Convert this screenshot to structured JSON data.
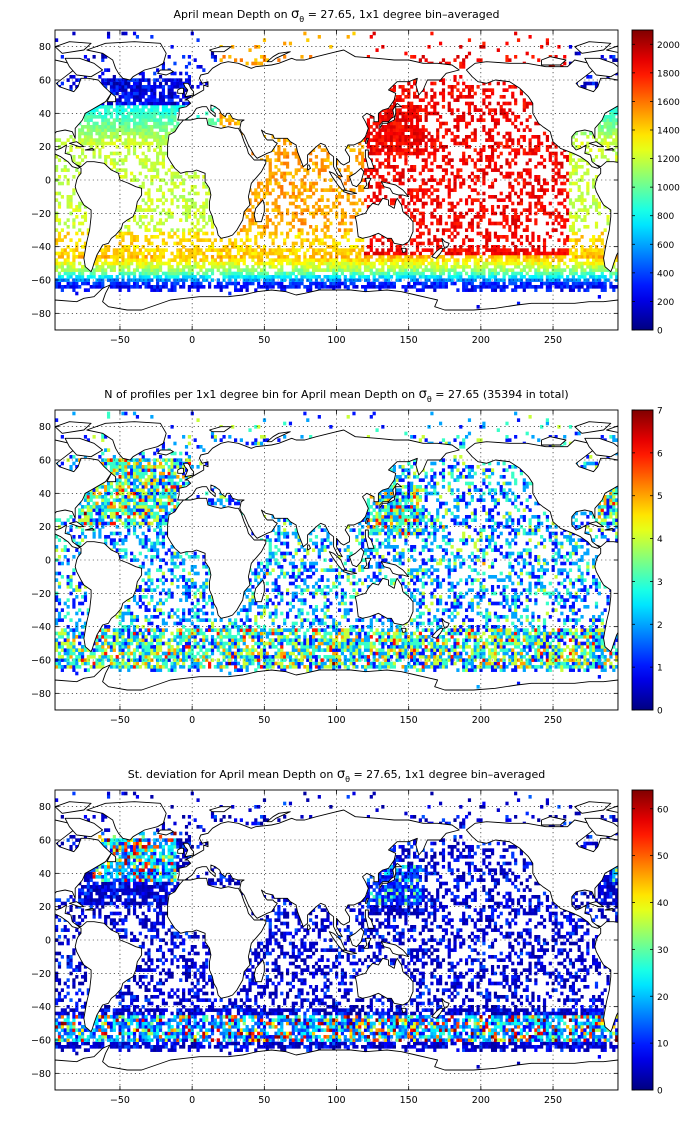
{
  "chart_data": [
    {
      "type": "heatmap",
      "title_pre": "April mean Depth on ",
      "title_sym": "σ",
      "title_sub": "θ",
      "title_post": " = 27.65, 1x1 degree bin–averaged",
      "xlim": [
        -95,
        295
      ],
      "ylim": [
        -90,
        90
      ],
      "x_ticks": [
        -50,
        0,
        50,
        100,
        150,
        200,
        250
      ],
      "y_ticks": [
        80,
        60,
        40,
        20,
        0,
        -20,
        -40,
        -60,
        -80
      ],
      "grid": true,
      "colormap": "jet",
      "colorbar": {
        "min": 0,
        "max": 2100,
        "ticks": [
          0,
          200,
          400,
          600,
          800,
          1000,
          1200,
          1400,
          1600,
          1800,
          2000
        ]
      },
      "field": "depth"
    },
    {
      "type": "heatmap",
      "title_pre": "N of profiles per 1x1 degree bin for April mean Depth on ",
      "title_sym": "σ",
      "title_sub": "θ",
      "title_post": " = 27.65 (35394 in total)",
      "xlim": [
        -95,
        295
      ],
      "ylim": [
        -90,
        90
      ],
      "x_ticks": [
        -50,
        0,
        50,
        100,
        150,
        200,
        250
      ],
      "y_ticks": [
        80,
        60,
        40,
        20,
        0,
        -20,
        -40,
        -60,
        -80
      ],
      "grid": true,
      "colormap": "jet",
      "colorbar": {
        "min": 0,
        "max": 7,
        "ticks": [
          0,
          1,
          2,
          3,
          4,
          5,
          6,
          7
        ]
      },
      "field": "count"
    },
    {
      "type": "heatmap",
      "title_pre": "St. deviation for April mean Depth on ",
      "title_sym": "σ",
      "title_sub": "θ",
      "title_post": " = 27.65, 1x1 degree bin–averaged",
      "xlim": [
        -95,
        295
      ],
      "ylim": [
        -90,
        90
      ],
      "x_ticks": [
        -50,
        0,
        50,
        100,
        150,
        200,
        250
      ],
      "y_ticks": [
        80,
        60,
        40,
        20,
        0,
        -20,
        -40,
        -60,
        -80
      ],
      "grid": true,
      "colormap": "jet",
      "colorbar": {
        "min": 0,
        "max": 64,
        "ticks": [
          0,
          10,
          20,
          30,
          40,
          50,
          60
        ]
      },
      "field": "std"
    }
  ]
}
